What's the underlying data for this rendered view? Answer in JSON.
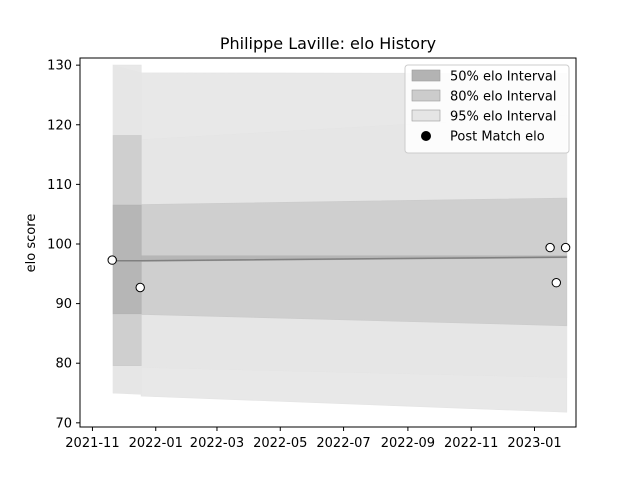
{
  "chart_data": {
    "type": "line",
    "title": "Philippe Laville: elo History",
    "xlabel": "",
    "ylabel": "elo score",
    "xlim": [
      "2021-10-20",
      "2023-02-10"
    ],
    "ylim": [
      69.3,
      131.2
    ],
    "x_ticks": [
      "2021-11",
      "2022-01",
      "2022-03",
      "2022-05",
      "2022-07",
      "2022-09",
      "2022-11",
      "2023-01"
    ],
    "y_ticks": [
      70,
      80,
      90,
      100,
      110,
      120,
      130
    ],
    "grid": false,
    "legend_position": "top-right",
    "legend": [
      {
        "label": "50% elo Interval",
        "color": "#b3b3b3",
        "kind": "patch"
      },
      {
        "label": "80% elo Interval",
        "color": "#cccccc",
        "kind": "patch"
      },
      {
        "label": "95% elo Interval",
        "color": "#e5e5e5",
        "kind": "patch"
      },
      {
        "label": "Post Match elo",
        "color": "#000000",
        "kind": "marker"
      }
    ],
    "intervals": {
      "x": [
        "2021-11-21",
        "2021-12-18",
        "2021-12-18",
        "2023-02-01"
      ],
      "mean": [
        97.2,
        97.2,
        97.2,
        97.8
      ],
      "i50_low": [
        88.3,
        88.3,
        98.0,
        98.0
      ],
      "i50_high": [
        106.5,
        106.5,
        97.1,
        97.7
      ],
      "i80_low": [
        79.6,
        79.6,
        88.2,
        86.3
      ],
      "i80_high": [
        118.2,
        118.2,
        106.6,
        107.7
      ],
      "i95_low": [
        75.0,
        75.0,
        79.3,
        77.6
      ],
      "i95_high": [
        130.0,
        130.0,
        117.5,
        121.6
      ],
      "i99_low": [
        75.0,
        74.8,
        74.5,
        71.8
      ],
      "i99_high": [
        130.0,
        128.7,
        128.7,
        128.6
      ]
    },
    "points": [
      {
        "x": "2021-11-20",
        "y": 97.3
      },
      {
        "x": "2021-12-17",
        "y": 92.7
      },
      {
        "x": "2023-01-16",
        "y": 99.4
      },
      {
        "x": "2023-01-22",
        "y": 93.5
      },
      {
        "x": "2023-01-31",
        "y": 99.4
      }
    ]
  }
}
